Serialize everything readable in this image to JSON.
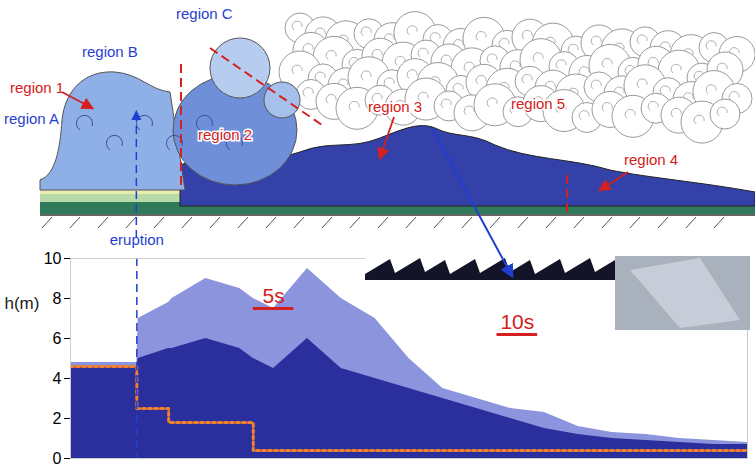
{
  "sketch": {
    "labels": [
      {
        "text": "region A",
        "color": "#1f3fd0"
      },
      {
        "text": "region B",
        "color": "#1f3fd0"
      },
      {
        "text": "region C",
        "color": "#1f3fd0"
      },
      {
        "text": "region 1",
        "color": "#d42020"
      },
      {
        "text": "region 2",
        "color": "#d42020"
      },
      {
        "text": "region 3",
        "color": "#d42020"
      },
      {
        "text": "region 5",
        "color": "#d42020"
      },
      {
        "text": "region 4",
        "color": "#d42020"
      }
    ]
  },
  "chart_data": {
    "type": "area",
    "x": [
      0,
      9.8,
      10,
      14.5,
      15,
      20,
      25,
      27,
      30,
      35,
      40,
      45,
      50,
      55,
      60,
      65,
      70,
      75,
      80,
      85,
      90,
      95,
      100
    ],
    "series": [
      {
        "type": "area",
        "color": "#8b94dc",
        "values": [
          4.8,
          4.8,
          7,
          7.8,
          8,
          9,
          8.5,
          8,
          7.5,
          9.5,
          8,
          7,
          5,
          3.5,
          3,
          2.5,
          2.3,
          1.6,
          1.3,
          1.2,
          1.0,
          0.9,
          0.8
        ]
      },
      {
        "type": "area",
        "color": "#2b2f9e",
        "values": [
          4.6,
          4.6,
          5,
          5.5,
          5.5,
          6,
          5.5,
          5,
          4.5,
          6,
          4.5,
          4,
          3.5,
          3,
          2.5,
          2,
          1.5,
          1.2,
          1,
          0.9,
          0.8,
          0.7,
          0.7
        ]
      },
      {
        "type": "line",
        "color": "#f08030",
        "line_style": "dotted",
        "values": [
          4.6,
          2.5,
          2.5,
          1.8,
          1.8,
          1.8,
          1.8,
          0.4,
          0.4,
          0.4,
          0.4,
          0.4,
          0.4,
          0.4,
          0.4,
          0.4,
          0.4,
          0.4,
          0.4,
          0.4,
          0.4,
          0.4,
          0.4
        ]
      }
    ],
    "ylabel": "h(m)",
    "xlim": [
      0,
      100
    ],
    "ylim": [
      0,
      10
    ],
    "yticks": [
      0,
      2,
      4,
      6,
      8,
      10
    ],
    "tick_labels": "y",
    "grid": false,
    "events": [
      {
        "x": 9.8,
        "label": "eruption",
        "color": "#1f3fd0"
      }
    ],
    "annotations": [
      {
        "text": "5s",
        "x": 30,
        "y": 7.6,
        "color": "#d42020"
      },
      {
        "text": "10s",
        "x": 66,
        "y": 6.3,
        "color": "#d42020"
      }
    ]
  }
}
